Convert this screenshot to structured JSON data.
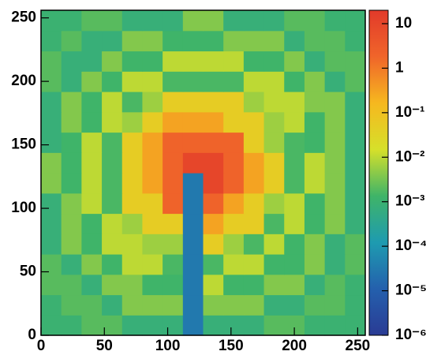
{
  "chart_data": {
    "type": "heatmap",
    "xbins": [
      0,
      16,
      32,
      48,
      64,
      80,
      96,
      112,
      128,
      144,
      160,
      176,
      192,
      208,
      224,
      240,
      256
    ],
    "ybins": [
      0,
      16,
      32,
      48,
      64,
      80,
      96,
      112,
      128,
      144,
      160,
      176,
      192,
      208,
      224,
      240,
      256
    ],
    "z": [
      [
        0.001,
        0.001,
        0.002,
        0.002,
        0.0008,
        0.0008,
        0.0008,
        3e-05,
        0.0008,
        0.0008,
        0.0008,
        0.002,
        0.002,
        0.001,
        0.001,
        0.001
      ],
      [
        0.001,
        0.002,
        0.002,
        0.0008,
        0.004,
        0.004,
        0.004,
        3e-05,
        0.004,
        0.004,
        0.004,
        0.0008,
        0.0008,
        0.002,
        0.002,
        0.001
      ],
      [
        0.002,
        0.002,
        0.0008,
        0.004,
        0.004,
        0.0013,
        0.0013,
        3e-05,
        0.01,
        0.0013,
        0.0013,
        0.004,
        0.004,
        0.0008,
        0.002,
        0.001
      ],
      [
        0.002,
        0.0008,
        0.004,
        0.0013,
        0.01,
        0.01,
        0.0016,
        3e-05,
        0.0016,
        0.01,
        0.01,
        0.0013,
        0.0013,
        0.004,
        0.0008,
        0.002
      ],
      [
        0.0008,
        0.004,
        0.0013,
        0.01,
        0.01,
        0.006,
        0.006,
        3e-05,
        0.05,
        0.006,
        0.0016,
        0.01,
        0.0013,
        0.004,
        0.0008,
        0.002
      ],
      [
        0.0008,
        0.004,
        0.0013,
        0.01,
        0.006,
        0.05,
        0.05,
        3e-05,
        0.3,
        0.05,
        0.05,
        0.0016,
        0.01,
        0.0013,
        0.004,
        0.0008
      ],
      [
        0.0008,
        0.004,
        0.01,
        0.0016,
        0.05,
        0.05,
        2,
        3e-05,
        2,
        0.3,
        0.05,
        0.006,
        0.01,
        0.0013,
        0.004,
        0.0008
      ],
      [
        0.004,
        0.0013,
        0.01,
        0.0016,
        0.05,
        0.3,
        2,
        3e-05,
        10,
        2,
        0.3,
        0.05,
        0.0016,
        0.01,
        0.004,
        0.0008
      ],
      [
        0.004,
        0.0013,
        0.01,
        0.0016,
        0.05,
        0.3,
        2,
        10,
        10,
        2,
        0.3,
        0.05,
        0.0016,
        0.01,
        0.004,
        0.0008
      ],
      [
        0.0008,
        0.0013,
        0.01,
        0.0016,
        0.05,
        0.3,
        2,
        2,
        2,
        2,
        0.05,
        0.006,
        0.0016,
        0.0013,
        0.004,
        0.0008
      ],
      [
        0.0008,
        0.004,
        0.0013,
        0.01,
        0.006,
        0.05,
        0.3,
        0.3,
        0.3,
        0.05,
        0.05,
        0.006,
        0.01,
        0.0013,
        0.004,
        0.0008
      ],
      [
        0.0008,
        0.004,
        0.0013,
        0.01,
        0.0016,
        0.006,
        0.05,
        0.05,
        0.05,
        0.05,
        0.006,
        0.01,
        0.01,
        0.004,
        0.004,
        0.0008
      ],
      [
        0.002,
        0.0008,
        0.004,
        0.0013,
        0.01,
        0.01,
        0.0016,
        0.0016,
        0.0016,
        0.0016,
        0.01,
        0.01,
        0.0013,
        0.004,
        0.0008,
        0.002
      ],
      [
        0.002,
        0.0008,
        0.0008,
        0.004,
        0.0013,
        0.0013,
        0.01,
        0.01,
        0.01,
        0.01,
        0.0013,
        0.0013,
        0.004,
        0.0008,
        0.002,
        0.002
      ],
      [
        0.001,
        0.002,
        0.0008,
        0.0008,
        0.004,
        0.004,
        0.0013,
        0.0013,
        0.0013,
        0.004,
        0.004,
        0.004,
        0.0008,
        0.002,
        0.002,
        0.001
      ],
      [
        0.001,
        0.001,
        0.002,
        0.002,
        0.0008,
        0.0008,
        0.0008,
        0.004,
        0.004,
        0.0008,
        0.0008,
        0.0008,
        0.002,
        0.002,
        0.001,
        0.001
      ]
    ],
    "xlim": [
      0,
      256
    ],
    "ylim": [
      0,
      256
    ],
    "xticks": [
      0,
      50,
      100,
      150,
      200,
      250
    ],
    "yticks": [
      0,
      50,
      100,
      150,
      200,
      250
    ],
    "zlim": [
      1e-06,
      20
    ],
    "zscale": "log",
    "zticks": [
      10,
      1,
      {
        "value": 0.1,
        "label": "10⁻¹"
      },
      {
        "value": 0.01,
        "label": "10⁻²"
      },
      {
        "value": 0.001,
        "label": "10⁻³"
      },
      {
        "value": 0.0001,
        "label": "10⁻⁴"
      },
      {
        "value": 1e-05,
        "label": "10⁻⁵"
      },
      {
        "value": 1e-06,
        "label": "10⁻⁶"
      }
    ],
    "colorscale": [
      "#2a3b94",
      "#2460ad",
      "#1e9bb0",
      "#3fb468",
      "#d6e02a",
      "#f6b81f",
      "#f0652a",
      "#e23a2a"
    ]
  }
}
